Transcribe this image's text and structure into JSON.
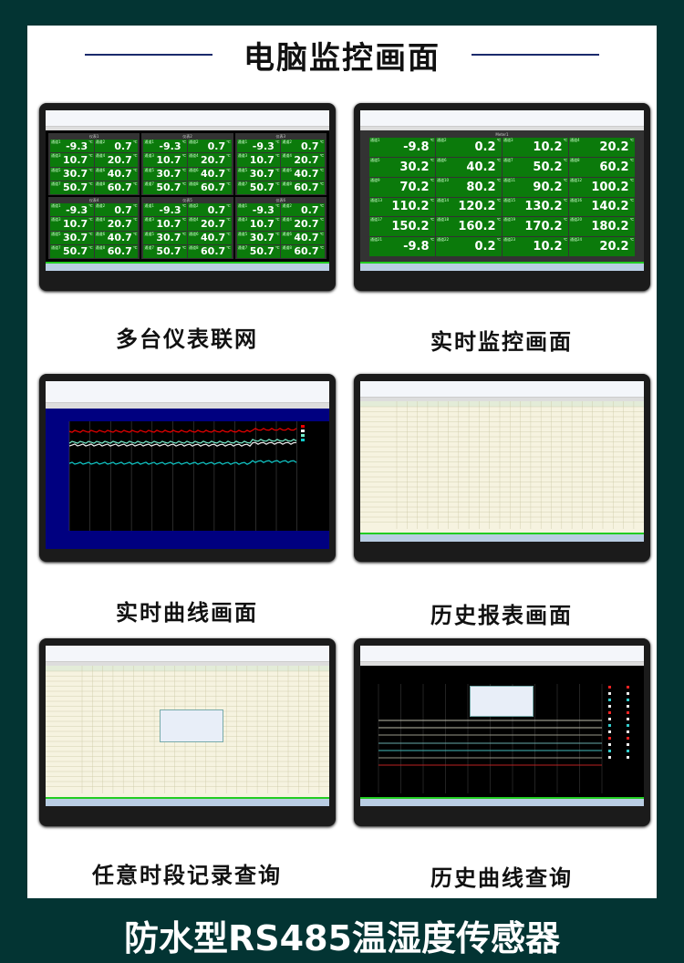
{
  "header": {
    "title": "电脑监控画面"
  },
  "panels": [
    {
      "caption": "多台仪表联网",
      "meters": [
        "仪表1",
        "仪表2",
        "仪表3",
        "仪表4",
        "仪表5",
        "仪表6"
      ],
      "channel_labels": [
        "通道1",
        "通道2",
        "通道3",
        "通道4",
        "通道5",
        "通道6",
        "通道7",
        "通道8"
      ],
      "values": [
        "-9.3",
        "0.7",
        "10.7",
        "20.7",
        "30.7",
        "40.7",
        "50.7",
        "60.7"
      ],
      "unit": "℃"
    },
    {
      "caption": "实时监控画面",
      "meter": "Meter1",
      "unit": "℃",
      "channels": [
        [
          "通道1",
          "-9.8"
        ],
        [
          "通道2",
          "0.2"
        ],
        [
          "通道3",
          "10.2"
        ],
        [
          "通道4",
          "20.2"
        ],
        [
          "通道5",
          "30.2"
        ],
        [
          "通道6",
          "40.2"
        ],
        [
          "通道7",
          "50.2"
        ],
        [
          "通道8",
          "60.2"
        ],
        [
          "通道9",
          "70.2"
        ],
        [
          "通道10",
          "80.2"
        ],
        [
          "通道11",
          "90.2"
        ],
        [
          "通道12",
          "100.2"
        ],
        [
          "通道13",
          "110.2"
        ],
        [
          "通道14",
          "120.2"
        ],
        [
          "通道15",
          "130.2"
        ],
        [
          "通道16",
          "140.2"
        ],
        [
          "通道17",
          "150.2"
        ],
        [
          "通道18",
          "160.2"
        ],
        [
          "通道19",
          "170.2"
        ],
        [
          "通道20",
          "180.2"
        ],
        [
          "通道21",
          "-9.8"
        ],
        [
          "通道22",
          "0.2"
        ],
        [
          "通道23",
          "10.2"
        ],
        [
          "通道24",
          "20.2"
        ]
      ]
    },
    {
      "caption": "实时曲线画面"
    },
    {
      "caption": "历史报表画面"
    },
    {
      "caption": "任意时段记录查询"
    },
    {
      "caption": "历史曲线查询"
    }
  ],
  "footer": {
    "title": "防水型RS485温湿度传感器"
  },
  "colors": {
    "background": "#033433",
    "tile_green": "#0b7a0b",
    "chart_bg": "#000080"
  }
}
